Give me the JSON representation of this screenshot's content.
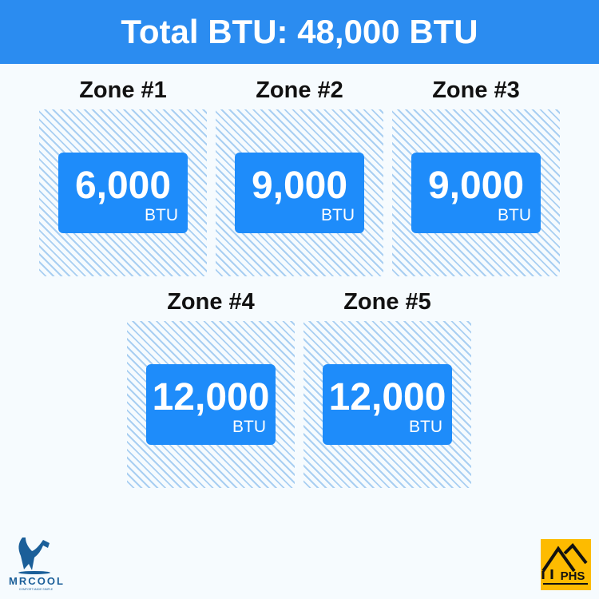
{
  "header": {
    "title": "Total BTU: 48,000 BTU"
  },
  "zones": [
    {
      "label": "Zone #1",
      "value": "6,000",
      "unit": "BTU"
    },
    {
      "label": "Zone #2",
      "value": "9,000",
      "unit": "BTU"
    },
    {
      "label": "Zone #3",
      "value": "9,000",
      "unit": "BTU"
    },
    {
      "label": "Zone #4",
      "value": "12,000",
      "unit": "BTU"
    },
    {
      "label": "Zone #5",
      "value": "12,000",
      "unit": "BTU"
    }
  ],
  "logos": {
    "mrcool": "MRCOOL",
    "mrcool_tagline": "COMFORT MADE SIMPLE",
    "phs": "PHS"
  },
  "colors": {
    "accent": "#2b8cf0",
    "card": "#1e8cfa",
    "hatch": "#a9cff2",
    "phs": "#fdbb00",
    "mrcool": "#1b5f99"
  }
}
